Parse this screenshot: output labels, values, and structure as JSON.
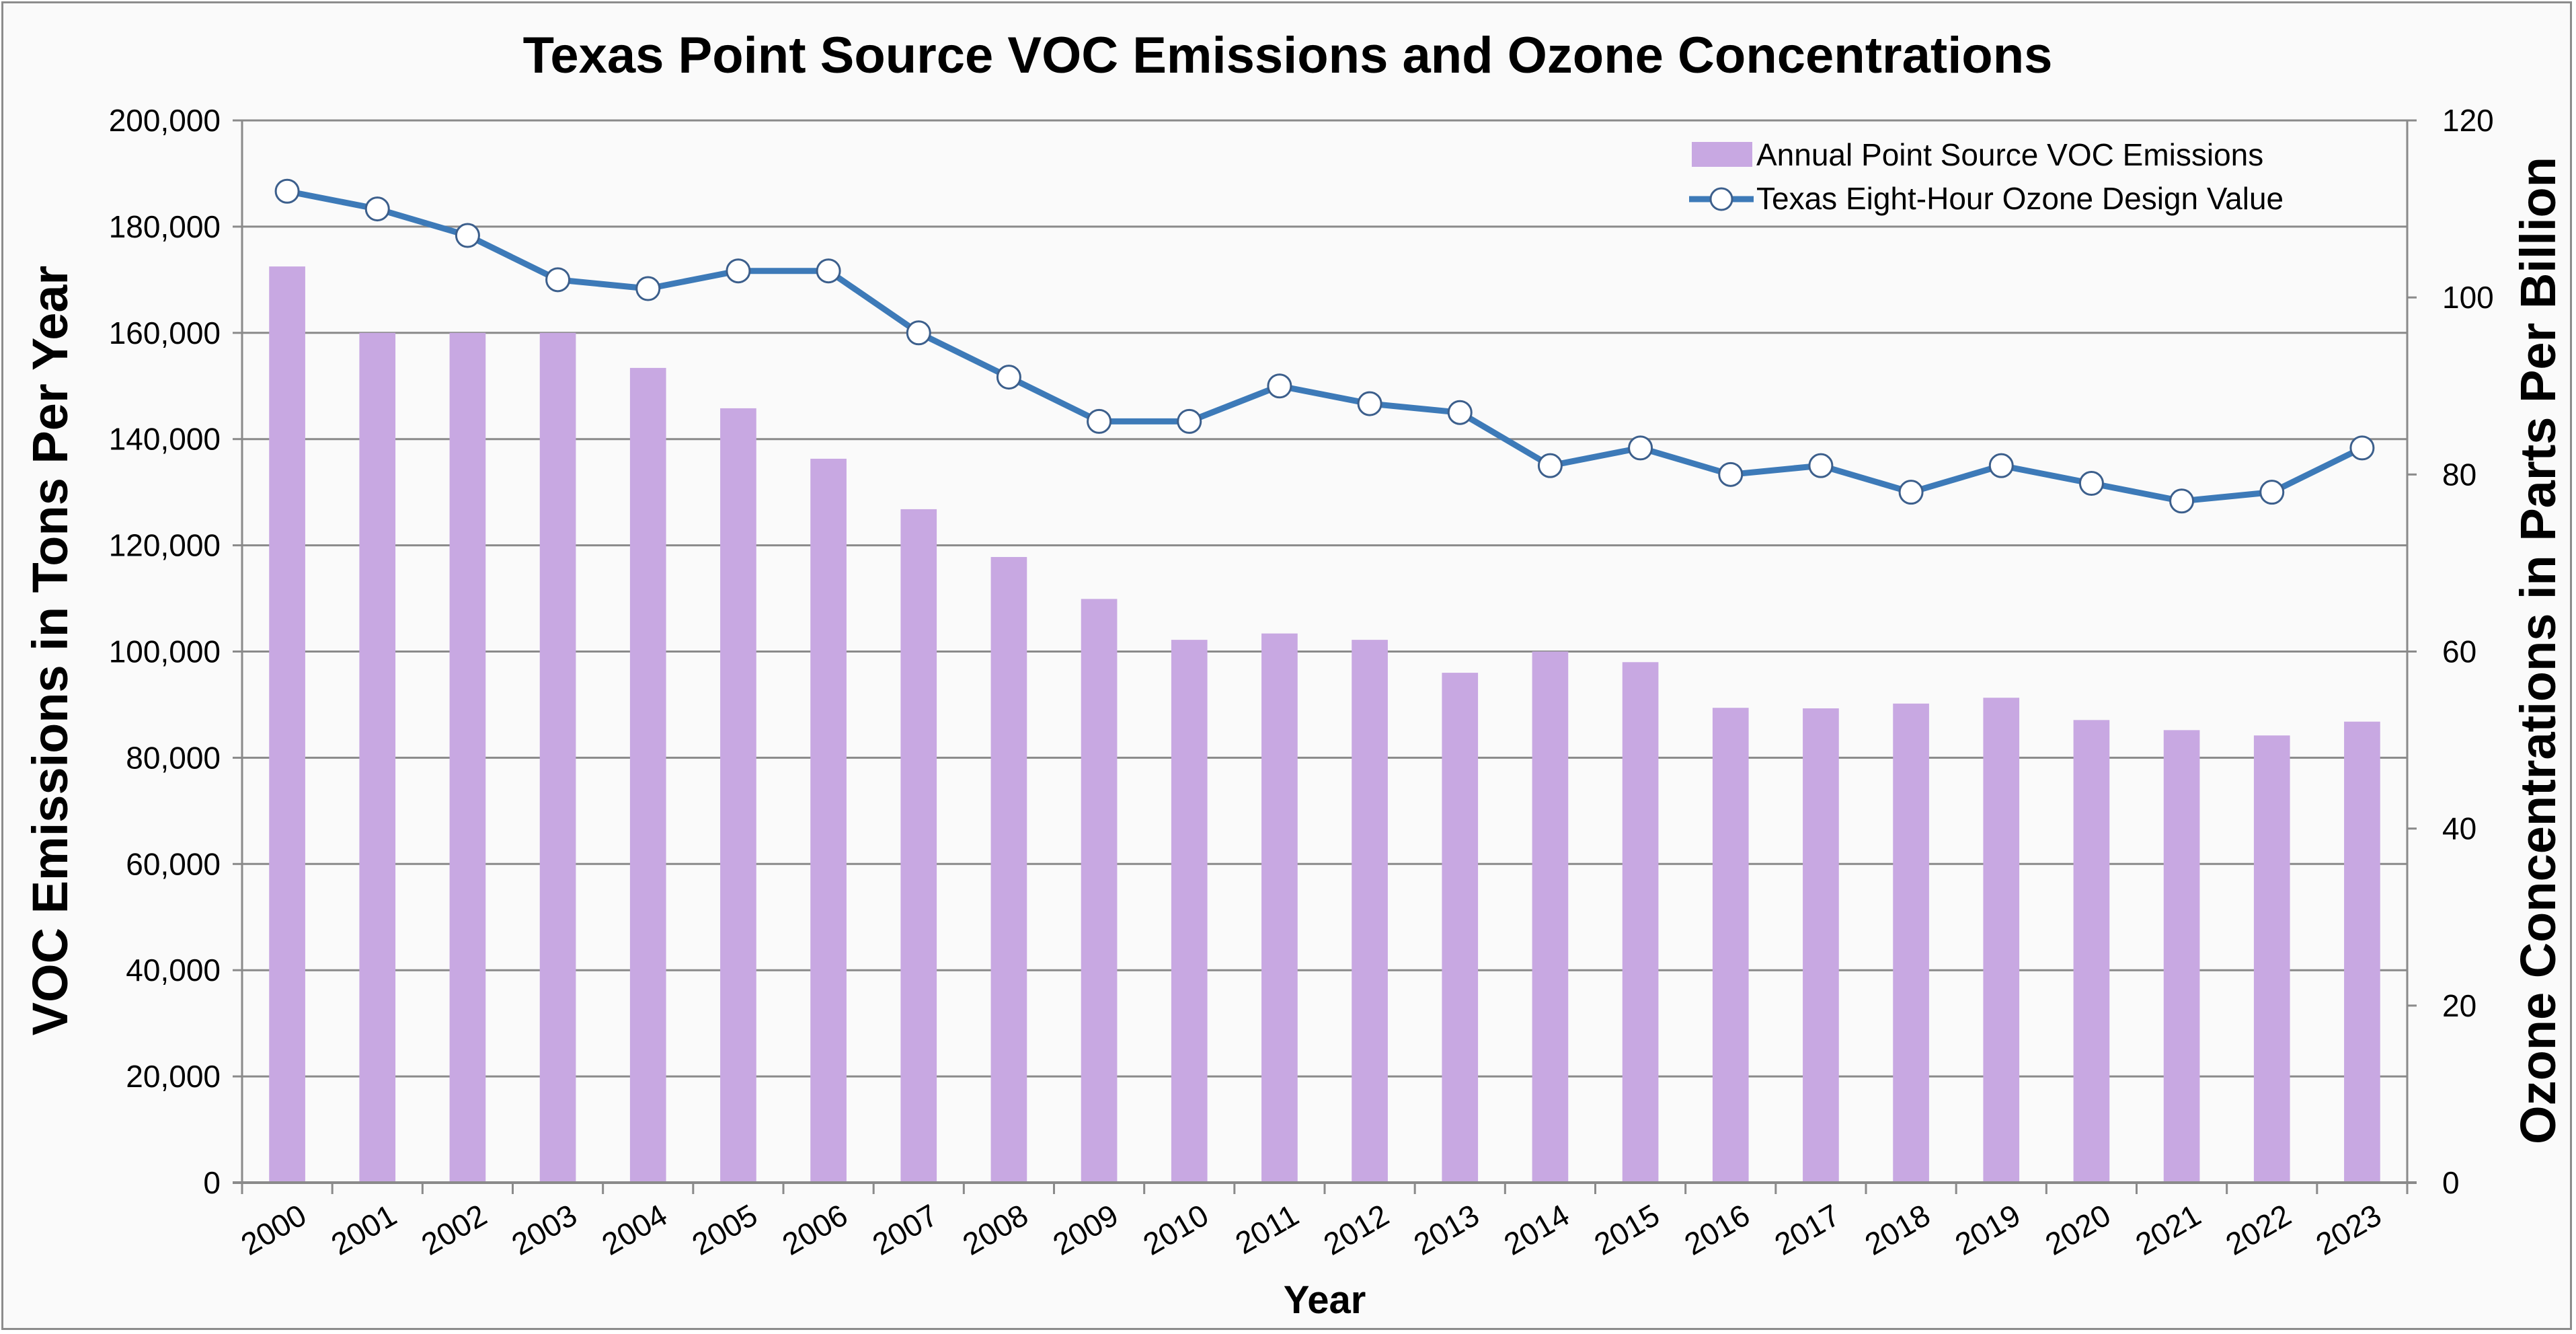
{
  "chart_data": {
    "type": "bar+line",
    "title": "Texas Point Source VOC Emissions and Ozone Concentrations",
    "xlabel": "Year",
    "ylabel": "VOC Emissions in Tons Per Year",
    "y2label": "Ozone Concentrations in Parts Per Billion",
    "ylim": [
      0,
      200000
    ],
    "y2lim": [
      0,
      120
    ],
    "yticks": [
      "0",
      "20,000",
      "40,000",
      "60,000",
      "80,000",
      "100,000",
      "120,000",
      "140,000",
      "160,000",
      "180,000",
      "200,000"
    ],
    "ytick_values": [
      0,
      20000,
      40000,
      60000,
      80000,
      100000,
      120000,
      140000,
      160000,
      180000,
      200000
    ],
    "y2ticks": [
      "0",
      "20",
      "40",
      "60",
      "80",
      "100",
      "120"
    ],
    "y2tick_values": [
      0,
      20,
      40,
      60,
      80,
      100,
      120
    ],
    "grid": true,
    "legend_position": "top-right",
    "categories": [
      "2000",
      "2001",
      "2002",
      "2003",
      "2004",
      "2005",
      "2006",
      "2007",
      "2008",
      "2009",
      "2010",
      "2011",
      "2012",
      "2013",
      "2014",
      "2015",
      "2016",
      "2017",
      "2018",
      "2019",
      "2020",
      "2021",
      "2022",
      "2023"
    ],
    "series": [
      {
        "name": "Annual Point Source VOC Emissions",
        "type": "bar",
        "axis": "left",
        "color": "#c8a8e2",
        "values": [
          172500,
          160000,
          160000,
          160000,
          153400,
          145800,
          136300,
          126800,
          117800,
          109900,
          102200,
          103400,
          102200,
          96000,
          100000,
          98000,
          89400,
          89300,
          90200,
          91300,
          87100,
          85200,
          84200,
          86800
        ]
      },
      {
        "name": "Texas Eight-Hour Ozone Design Value",
        "type": "line",
        "axis": "right",
        "color": "#3d7ab8",
        "marker": "open-circle",
        "values": [
          112,
          110,
          107,
          102,
          101,
          103,
          103,
          96,
          91,
          86,
          86,
          90,
          88,
          87,
          81,
          83,
          80,
          81,
          78,
          81,
          79,
          77,
          78,
          83
        ]
      }
    ]
  }
}
